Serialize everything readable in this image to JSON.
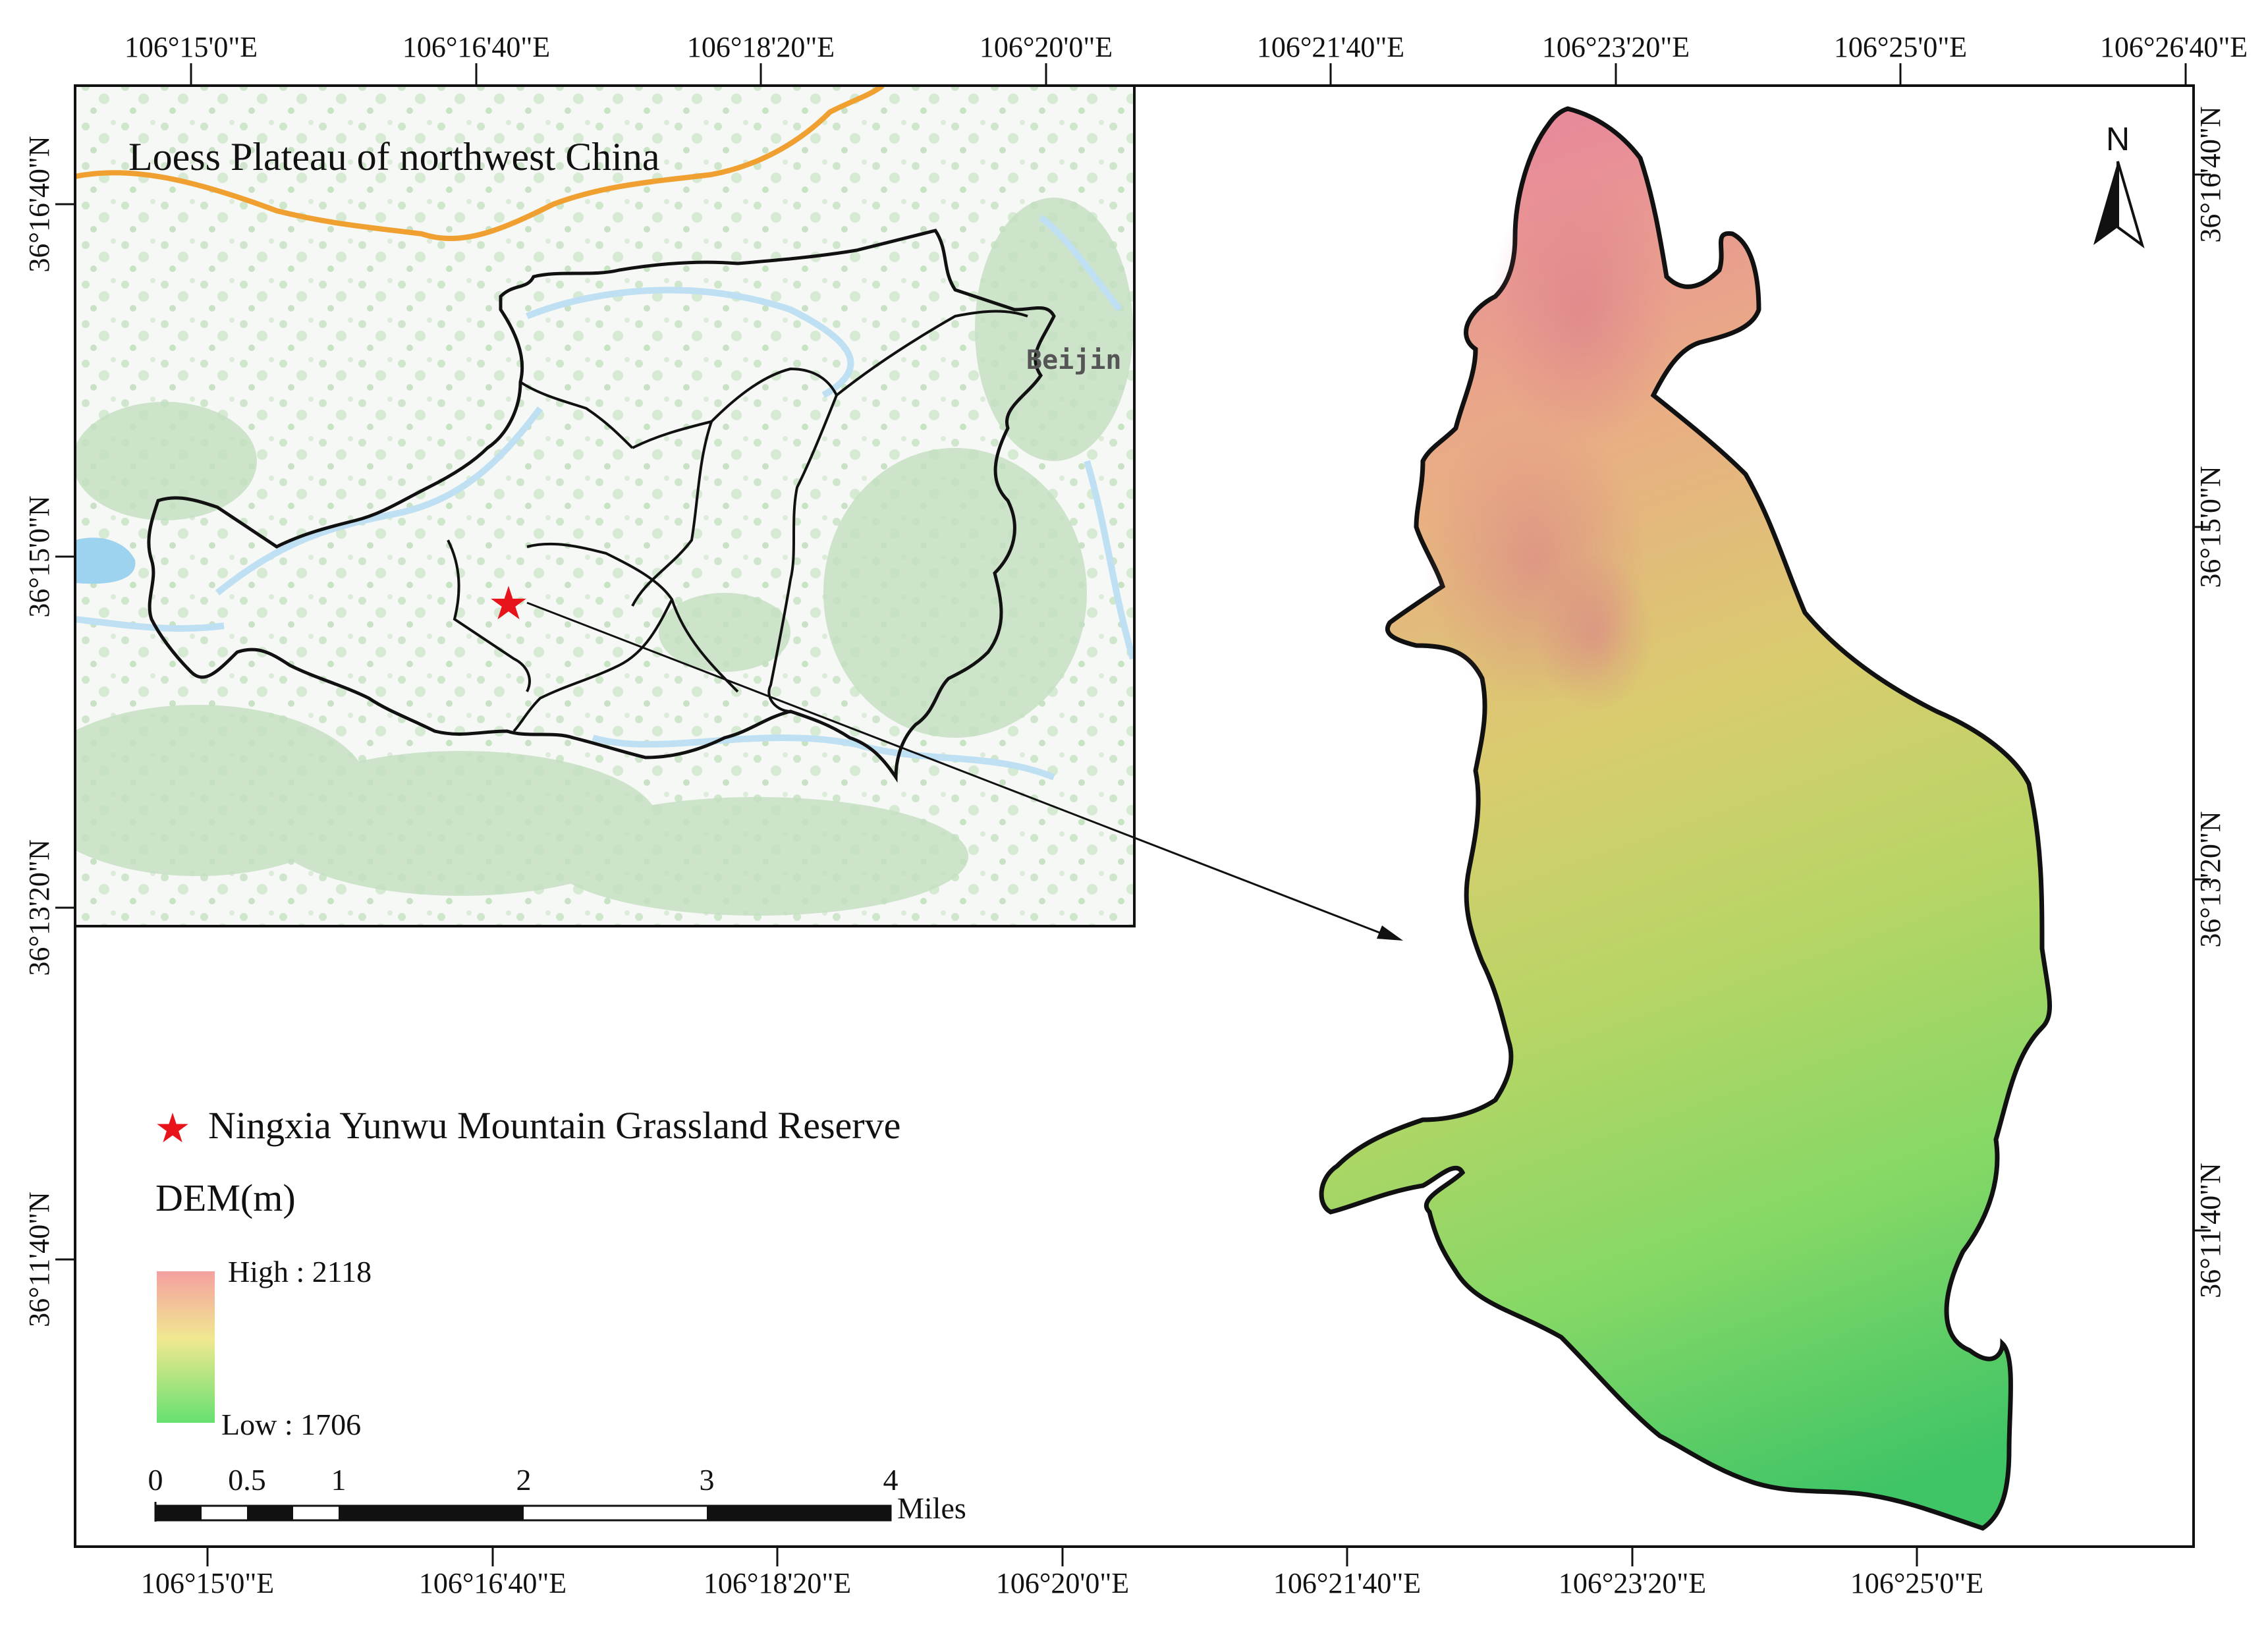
{
  "top_lon_labels": [
    "106°15'0\"E",
    "106°16'40\"E",
    "106°18'20\"E",
    "106°20'0\"E",
    "106°21'40\"E",
    "106°23'20\"E",
    "106°25'0\"E",
    "106°26'40\"E"
  ],
  "bottom_lon_labels": [
    "106°15'0\"E",
    "106°16'40\"E",
    "106°18'20\"E",
    "106°20'0\"E",
    "106°21'40\"E",
    "106°23'20\"E",
    "106°25'0\"E"
  ],
  "left_lat_labels": [
    "36°16'40\"N",
    "36°15'0\"N",
    "36°13'20\"N",
    "36°11'40\"N"
  ],
  "right_lat_labels": [
    "36°16'40\"N",
    "36°15'0\"N",
    "36°13'20\"N",
    "36°11'40\"N"
  ],
  "inset": {
    "title": "Loess Plateau of northwest China",
    "city_label": "Beijin"
  },
  "legend": {
    "reserve_label": "Ningxia Yunwu Mountain Grassland Reserve",
    "dem_title": "DEM(m)",
    "high_label": "High : 2118",
    "low_label": "Low : 1706",
    "colors": {
      "high": "#f4a0a0",
      "mid": "#f0f080",
      "low": "#66e070",
      "star": "#e8141c"
    }
  },
  "scale_bar": {
    "ticks": [
      "0",
      "0.5",
      "1",
      "2",
      "3",
      "4"
    ],
    "unit": "Miles"
  },
  "north_arrow": {
    "label": "N"
  }
}
